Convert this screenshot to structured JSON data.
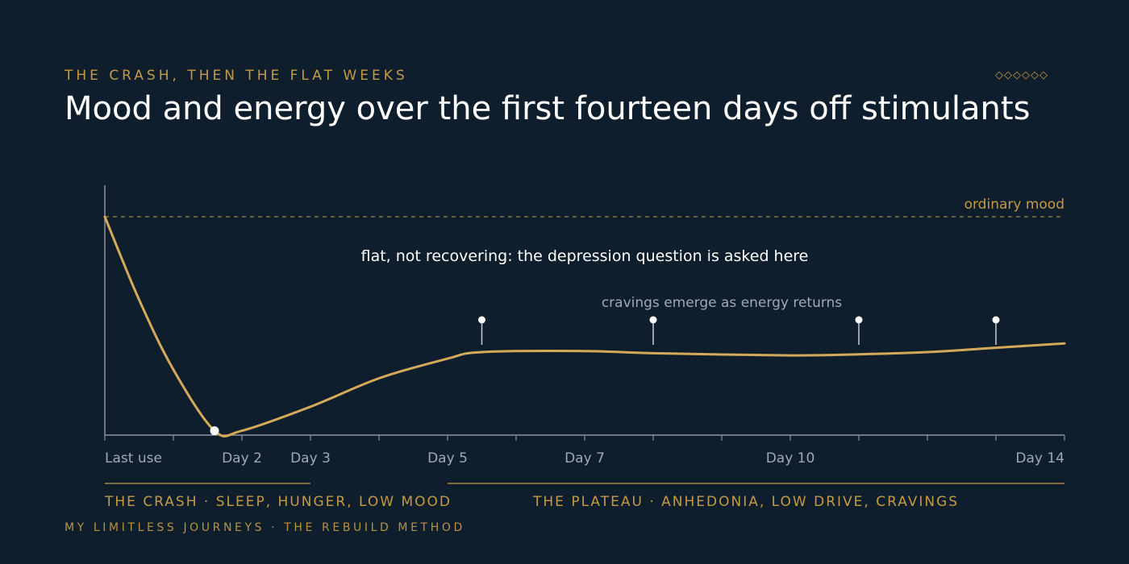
{
  "header": {
    "eyebrow": "THE CRASH, THEN THE FLAT WEEKS",
    "ornament": "◇◇◇◇◇◇",
    "title": "Mood and energy over the first fourteen days off stimulants"
  },
  "chart_data": {
    "type": "line",
    "title": "Mood and energy over the first fourteen days off stimulants",
    "xlabel": "",
    "ylabel": "",
    "xlim": [
      0,
      14
    ],
    "ylim": [
      0,
      1
    ],
    "x_ticks": [
      0,
      1,
      2,
      3,
      4,
      5,
      6,
      7,
      8,
      9,
      10,
      11,
      12,
      13,
      14
    ],
    "x_tick_labels": [
      {
        "x": 0,
        "label": "Last use"
      },
      {
        "x": 2,
        "label": "Day 2"
      },
      {
        "x": 3,
        "label": "Day 3"
      },
      {
        "x": 5,
        "label": "Day 5"
      },
      {
        "x": 7,
        "label": "Day 7"
      },
      {
        "x": 10,
        "label": "Day 10"
      },
      {
        "x": 14,
        "label": "Day 14"
      }
    ],
    "series": [
      {
        "name": "",
        "color": "#d4aa5a",
        "points": [
          [
            0,
            1.0
          ],
          [
            0.5,
            0.62
          ],
          [
            1,
            0.3
          ],
          [
            1.6,
            0.02
          ],
          [
            2,
            0.02
          ],
          [
            3,
            0.13
          ],
          [
            4,
            0.26
          ],
          [
            5,
            0.35
          ],
          [
            5.5,
            0.38
          ],
          [
            7,
            0.385
          ],
          [
            8,
            0.375
          ],
          [
            10,
            0.365
          ],
          [
            11,
            0.37
          ],
          [
            12,
            0.38
          ],
          [
            13,
            0.4
          ],
          [
            14,
            0.42
          ]
        ]
      }
    ],
    "minimum_marker": {
      "x": 1.6,
      "y": 0.02
    },
    "craving_markers": [
      5.5,
      8,
      11,
      13
    ],
    "reference_line": {
      "y": 1.0,
      "label": "ordinary mood"
    },
    "annotations": [
      {
        "text": "flat, not recovering: the depression question is asked here"
      },
      {
        "text": "cravings emerge as energy returns"
      }
    ],
    "phases": [
      {
        "from": 0,
        "to": 3,
        "label": "THE CRASH · SLEEP, HUNGER, LOW MOOD"
      },
      {
        "from": 5,
        "to": 14,
        "label": "THE PLATEAU · ANHEDONIA, LOW DRIVE, CRAVINGS"
      }
    ],
    "grid": false,
    "legend": "none",
    "colors": {
      "line": "#d4aa5a",
      "axis": "#8a939c",
      "reference": "#c49a45",
      "marker": "#ffffff",
      "accent": "#c49a45"
    }
  },
  "footer": {
    "text": "MY LIMITLESS JOURNEYS · THE REBUILD METHOD"
  }
}
